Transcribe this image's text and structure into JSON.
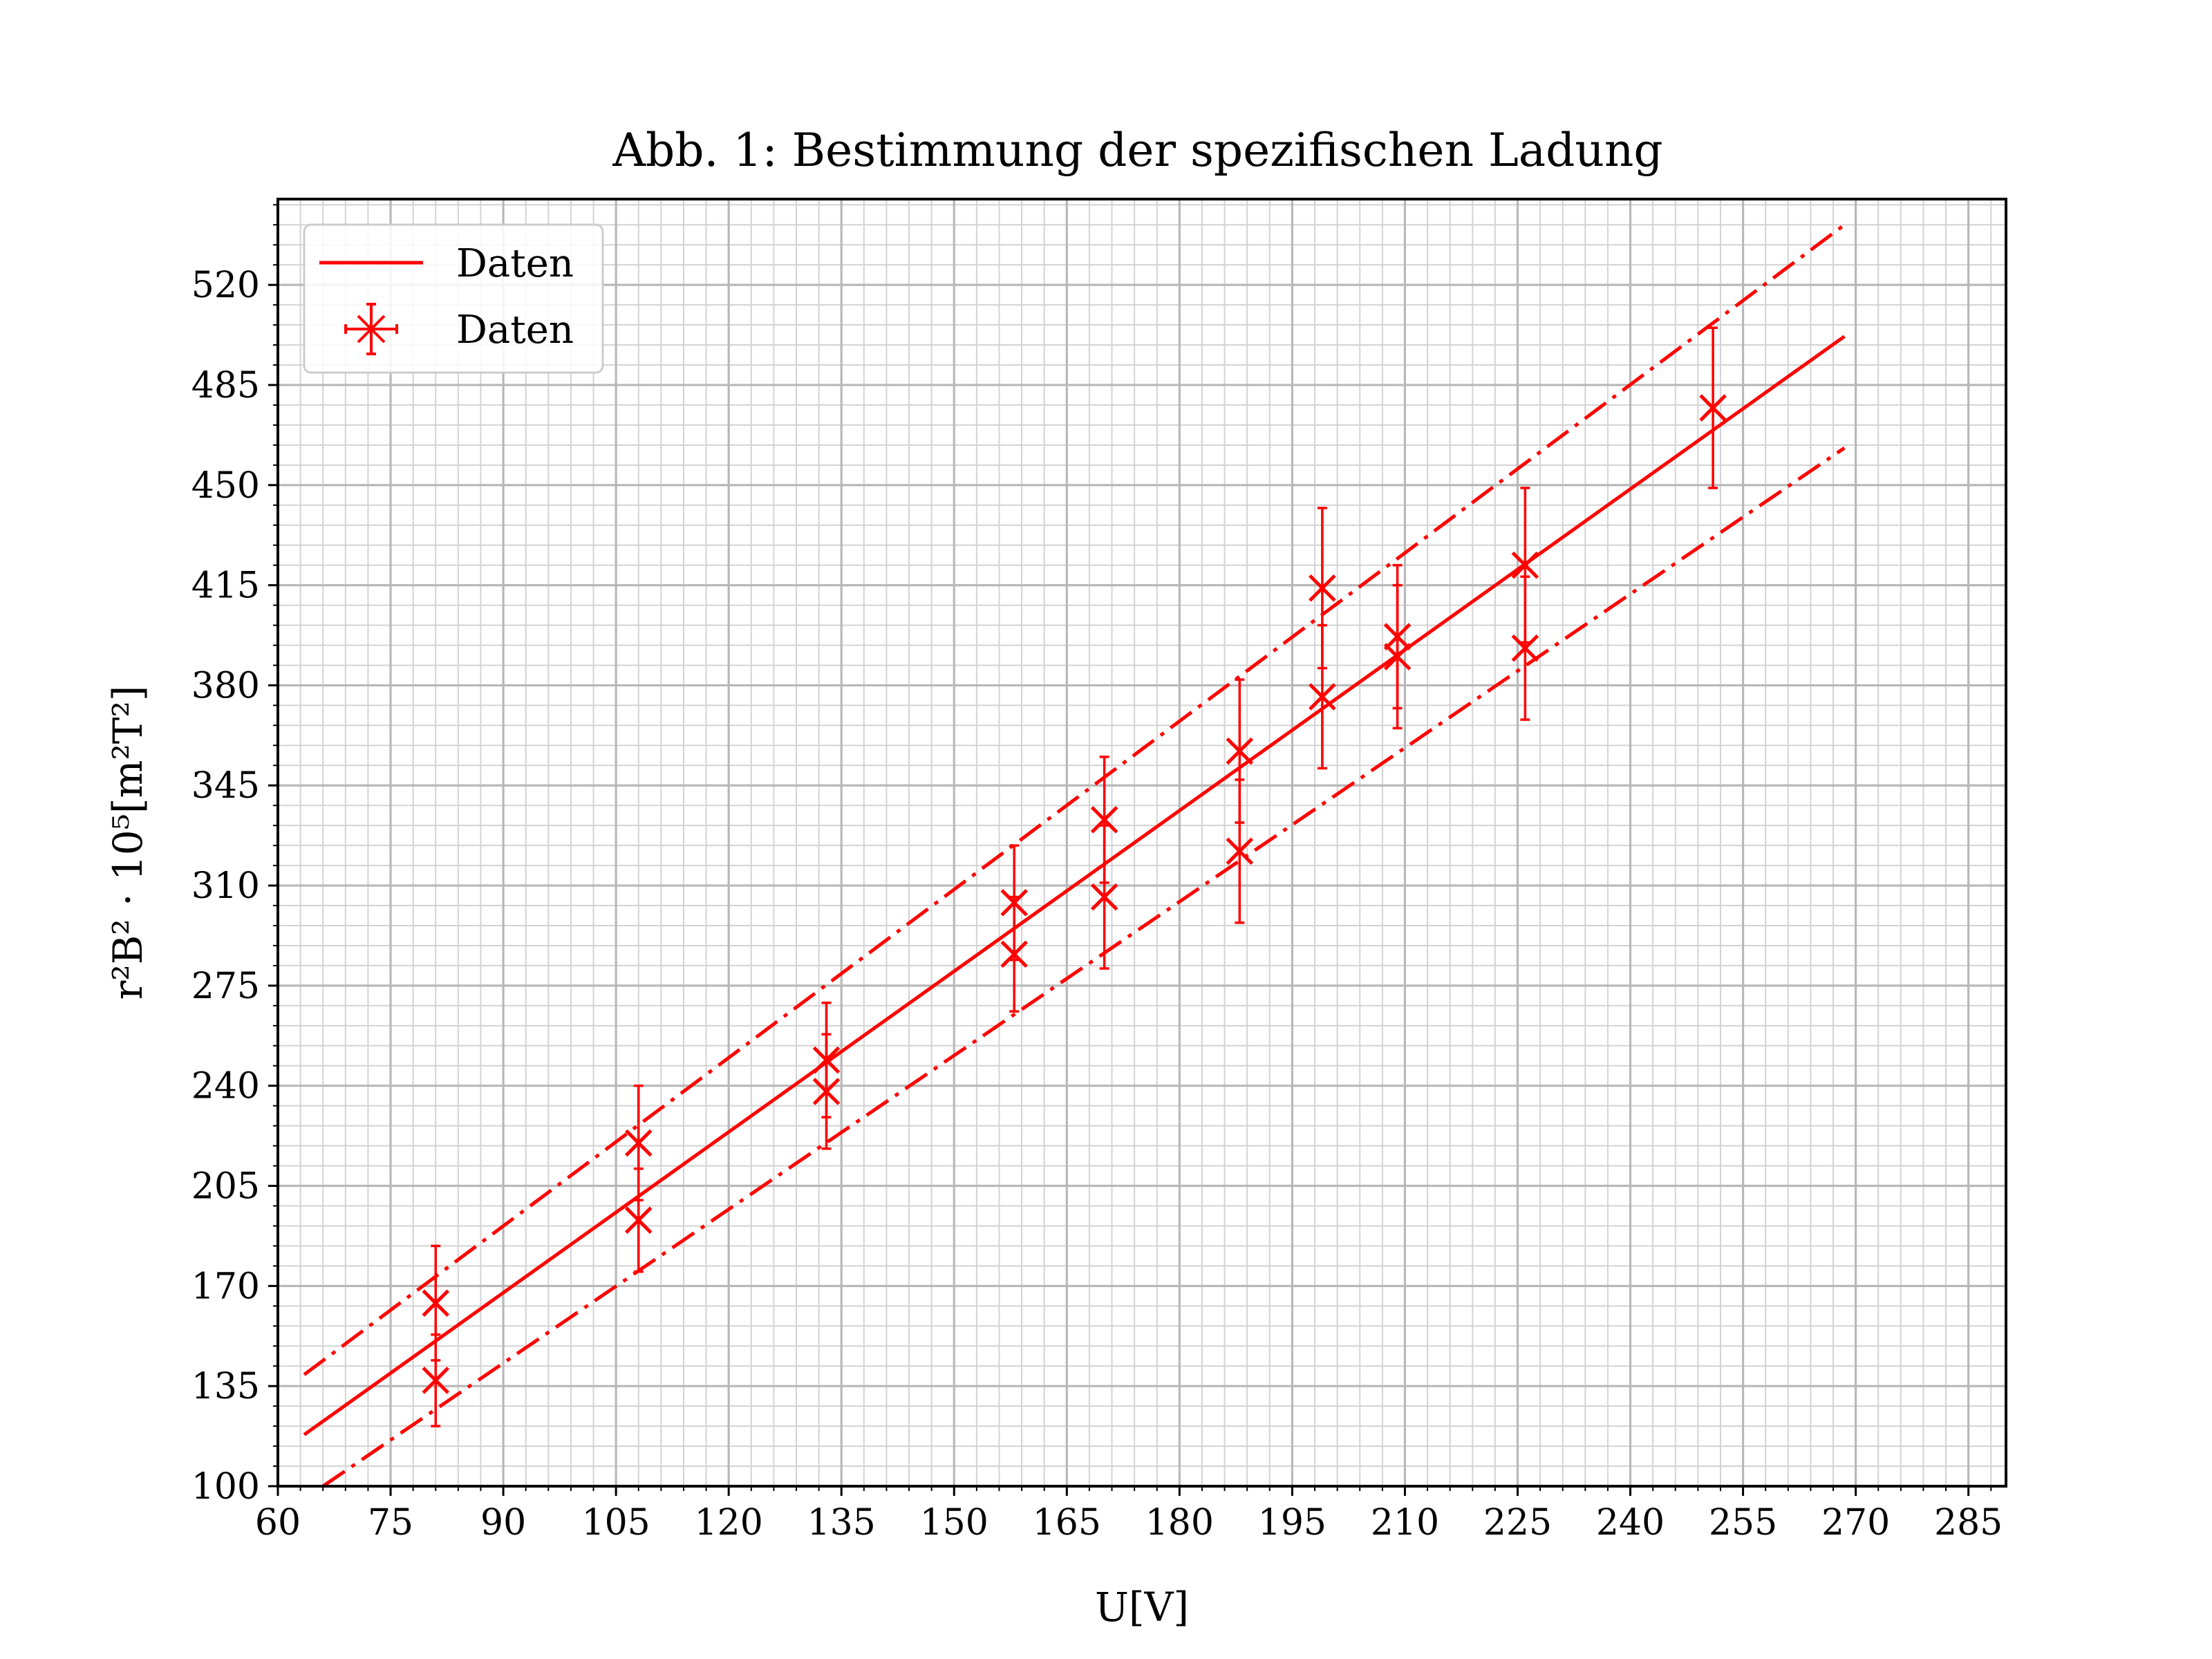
{
  "chart_data": {
    "type": "scatter",
    "title": "Abb. 1: Bestimmung der spezifischen Ladung",
    "xlabel": "U[V]",
    "ylabel": "r²B² · 10⁵[m²T²]",
    "xlim": [
      60,
      290
    ],
    "ylim": [
      100,
      550
    ],
    "xticks": [
      60,
      75,
      90,
      105,
      120,
      135,
      150,
      165,
      180,
      195,
      210,
      225,
      240,
      255,
      270,
      285
    ],
    "yticks": [
      100,
      135,
      170,
      205,
      240,
      275,
      310,
      345,
      380,
      415,
      450,
      485,
      520
    ],
    "x_minor_step": 3,
    "y_minor_step": 7,
    "grid": true,
    "legend_position": "top-left",
    "legend": [
      "Daten",
      "Daten"
    ],
    "color": "#ff0000",
    "fit_line": {
      "label": "Daten",
      "x": [
        63.5,
        268.5
      ],
      "y": [
        118,
        502
      ]
    },
    "upper_bound": {
      "x": [
        63.5,
        268.5
      ],
      "y": [
        139,
        541
      ]
    },
    "lower_bound": {
      "x": [
        66,
        268.5
      ],
      "y": [
        100,
        463
      ]
    },
    "points": {
      "label": "Daten",
      "x": [
        81,
        81,
        108,
        108,
        133,
        133,
        158,
        158,
        170,
        170,
        188,
        188,
        199,
        199,
        209,
        209,
        226,
        226,
        251
      ],
      "y": [
        164,
        137,
        220,
        193,
        249,
        238,
        304,
        286,
        333,
        306,
        357,
        322,
        414,
        376,
        397,
        390,
        422,
        393,
        477
      ],
      "yerr": [
        20,
        16,
        20,
        18,
        20,
        20,
        20,
        20,
        22,
        25,
        25,
        25,
        28,
        25,
        25,
        25,
        27,
        25,
        28
      ]
    }
  }
}
